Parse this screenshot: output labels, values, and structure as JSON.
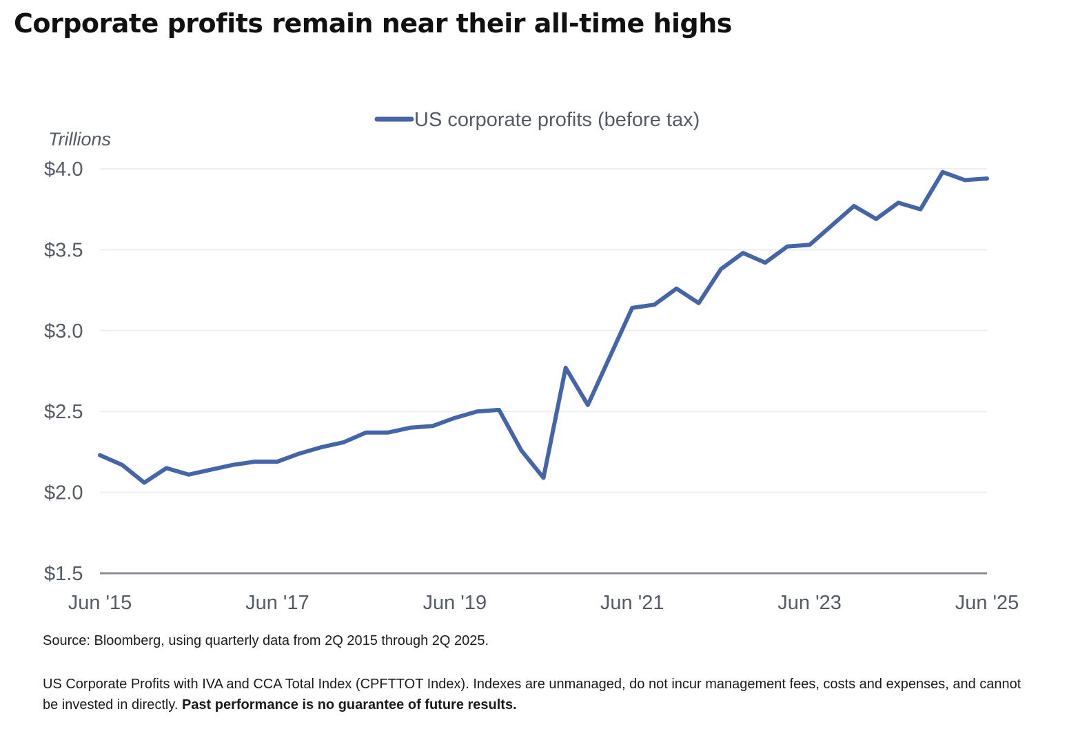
{
  "page": {
    "title": "Corporate profits remain near their all-time highs",
    "source": "Source: Bloomberg, using quarterly data from 2Q 2015 through 2Q 2025.",
    "note_text": "US Corporate Profits with IVA and CCA Total Index (CPFTTOT Index). Indexes are unmanaged, do not incur management fees, costs and expenses, and cannot be invested in directly.",
    "note_bold": "Past performance is no guarantee of future results."
  },
  "chart_data": {
    "type": "line",
    "ylabel": "Trillions",
    "ylim": [
      1.5,
      4.0
    ],
    "y_ticks": [
      4.0,
      3.5,
      3.0,
      2.5,
      2.0,
      1.5
    ],
    "y_tick_labels": [
      "$4.0",
      "$3.5",
      "$3.0",
      "$2.5",
      "$2.0",
      "$1.5"
    ],
    "x_tick_labels": [
      "Jun '15",
      "Jun '17",
      "Jun '19",
      "Jun '21",
      "Jun '23",
      "Jun '25"
    ],
    "grid": true,
    "legend_position": "top-center",
    "line_color": "#4466a8",
    "categories": [
      "Jun '15",
      "Sep '15",
      "Dec '15",
      "Mar '16",
      "Jun '16",
      "Sep '16",
      "Dec '16",
      "Mar '17",
      "Jun '17",
      "Sep '17",
      "Dec '17",
      "Mar '18",
      "Jun '18",
      "Sep '18",
      "Dec '18",
      "Mar '19",
      "Jun '19",
      "Sep '19",
      "Dec '19",
      "Mar '20",
      "Jun '20",
      "Sep '20",
      "Dec '20",
      "Mar '21",
      "Jun '21",
      "Sep '21",
      "Dec '21",
      "Mar '22",
      "Jun '22",
      "Sep '22",
      "Dec '22",
      "Mar '23",
      "Jun '23",
      "Sep '23",
      "Dec '23",
      "Mar '24",
      "Jun '24",
      "Sep '24",
      "Dec '24",
      "Mar '25",
      "Jun '25"
    ],
    "series": [
      {
        "name": "US corporate profits (before tax)",
        "values": [
          2.23,
          2.17,
          2.06,
          2.15,
          2.11,
          2.14,
          2.17,
          2.19,
          2.19,
          2.24,
          2.28,
          2.31,
          2.37,
          2.37,
          2.4,
          2.41,
          2.46,
          2.5,
          2.51,
          2.26,
          2.09,
          2.77,
          2.54,
          2.84,
          3.14,
          3.16,
          3.26,
          3.17,
          3.38,
          3.48,
          3.42,
          3.52,
          3.53,
          3.65,
          3.77,
          3.69,
          3.79,
          3.75,
          3.98,
          3.93,
          3.94
        ]
      }
    ]
  }
}
